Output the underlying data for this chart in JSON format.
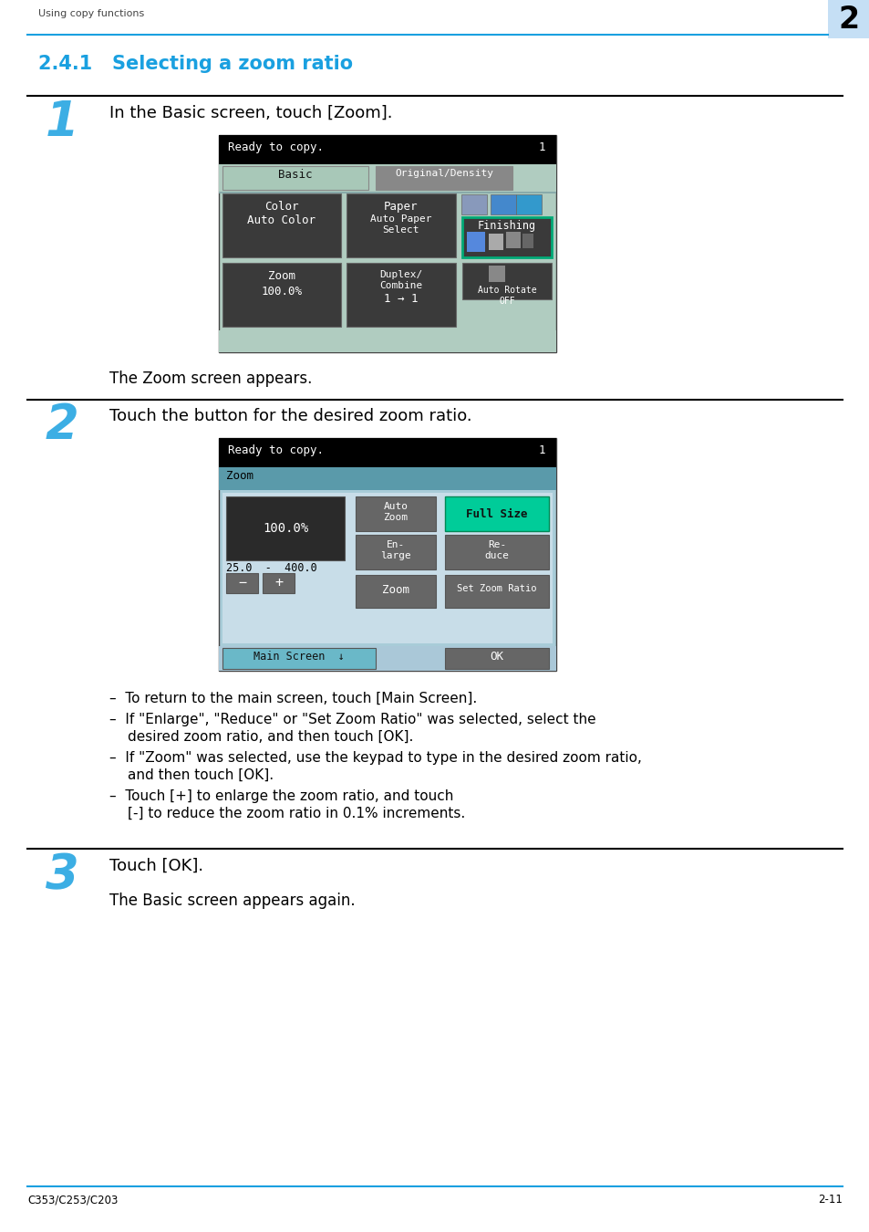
{
  "bg_color": "#ffffff",
  "header_line_color": "#1aa0e0",
  "header_text": "Using copy functions",
  "header_number": "2",
  "header_number_bg": "#c5dff5",
  "section_title": "2.4.1   Selecting a zoom ratio",
  "section_title_color": "#1aa0e0",
  "footer_line_color": "#1aa0e0",
  "footer_left": "C353/C253/C203",
  "footer_right": "2-11",
  "step1_number": "1",
  "step1_number_color": "#1aa0e0",
  "step1_text": "In the Basic screen, touch [Zoom].",
  "step1_subtext": "The Zoom screen appears.",
  "step2_number": "2",
  "step2_number_color": "#1aa0e0",
  "step2_text": "Touch the button for the desired zoom ratio.",
  "step2_bullets": [
    "To return to the main screen, touch [Main Screen].",
    "If \"Enlarge\", \"Reduce\" or \"Set Zoom Ratio\" was selected, select the\n    desired zoom ratio, and then touch [OK].",
    "If \"Zoom\" was selected, use the keypad to type in the desired zoom ratio,\n    and then touch [OK].",
    "Touch [+] to enlarge the zoom ratio, and touch\n    [-] to reduce the zoom ratio in 0.1% increments."
  ],
  "step3_number": "3",
  "step3_number_color": "#1aa0e0",
  "step3_text": "Touch [OK].",
  "step3_subtext": "The Basic screen appears again.",
  "screen1_bg": "#b0ccc0",
  "screen2_bg": "#a8ccd8",
  "screen_titlebar": "#000000",
  "screen_btn_dark": "#3a3a3a",
  "screen_btn_gray": "#666666",
  "screen_tab_active": "#a8c8b8",
  "screen_tab_inactive": "#888888",
  "screen_zoom_bar": "#5a9aaa",
  "screen_fullsize_btn": "#00cc99",
  "screen_mainscreen_btn": "#6ab8c8"
}
